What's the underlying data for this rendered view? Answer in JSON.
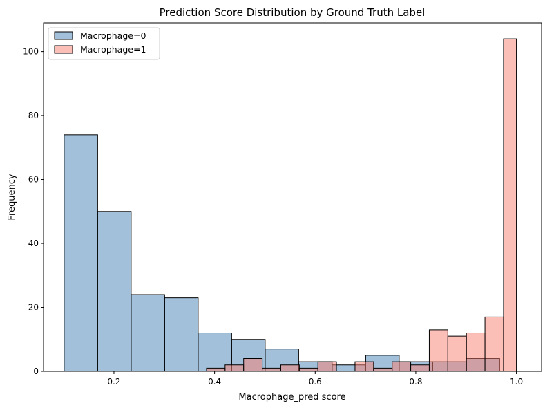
{
  "chart_data": {
    "type": "bar",
    "title": "Prediction Score Distribution by Ground Truth Label",
    "xlabel": "Macrophage_pred score",
    "ylabel": "Frequency",
    "xlim": [
      0.06,
      1.05
    ],
    "ylim": [
      0,
      109
    ],
    "xticks": [
      0.2,
      0.4,
      0.6,
      0.8,
      1.0
    ],
    "xtick_labels": [
      "0.2",
      "0.4",
      "0.6",
      "0.8",
      "1.0"
    ],
    "yticks": [
      0,
      20,
      40,
      60,
      80,
      100
    ],
    "ytick_labels": [
      "0",
      "20",
      "40",
      "60",
      "80",
      "100"
    ],
    "legend_position": "top-left",
    "series": [
      {
        "name": "Macrophage=0",
        "color": "#4682b4",
        "bin_edges": [
          0.101,
          0.1676,
          0.2342,
          0.3008,
          0.3674,
          0.434,
          0.5006,
          0.5672,
          0.6338,
          0.7004,
          0.767,
          0.8336,
          0.9002,
          0.9668
        ],
        "values": [
          74,
          50,
          24,
          23,
          12,
          10,
          7,
          3,
          2,
          5,
          3,
          3,
          4
        ]
      },
      {
        "name": "Macrophage=1",
        "color": "#fa8072",
        "bin_edges": [
          0.384,
          0.4209,
          0.4578,
          0.4947,
          0.5316,
          0.5685,
          0.6054,
          0.6423,
          0.6792,
          0.7161,
          0.753,
          0.7899,
          0.8268,
          0.8637,
          0.9006,
          0.9375,
          0.9744,
          1.0
        ],
        "values": [
          1,
          2,
          4,
          1,
          2,
          1,
          3,
          0,
          3,
          1,
          3,
          2,
          13,
          11,
          12,
          17,
          104
        ]
      }
    ]
  }
}
